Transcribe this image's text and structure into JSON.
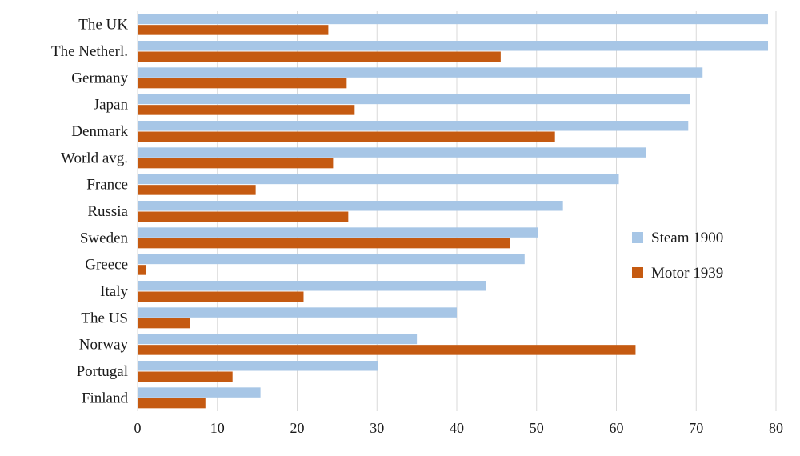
{
  "chart_data": {
    "type": "bar",
    "orientation": "horizontal",
    "categories": [
      "The UK",
      "The Netherl.",
      "Germany",
      "Japan",
      "Denmark",
      "World avg.",
      "France",
      "Russia",
      "Sweden",
      "Greece",
      "Italy",
      "The US",
      "Norway",
      "Portugal",
      "Finland"
    ],
    "series": [
      {
        "name": "Steam 1900",
        "color": "#a7c6e6",
        "values": [
          79,
          79,
          70.8,
          69.2,
          69,
          63.7,
          60.3,
          53.3,
          50.2,
          48.5,
          43.7,
          40,
          35,
          30.1,
          15.4
        ]
      },
      {
        "name": "Motor 1939",
        "color": "#c55a11",
        "values": [
          23.9,
          45.5,
          26.2,
          27.2,
          52.3,
          24.5,
          14.8,
          26.4,
          46.7,
          1.1,
          20.8,
          6.6,
          62.4,
          11.9,
          8.5
        ]
      }
    ],
    "xlim": [
      0,
      80
    ],
    "xticks": [
      0,
      10,
      20,
      30,
      40,
      50,
      60,
      70,
      80
    ],
    "grid": "vertical",
    "legend": "right"
  }
}
